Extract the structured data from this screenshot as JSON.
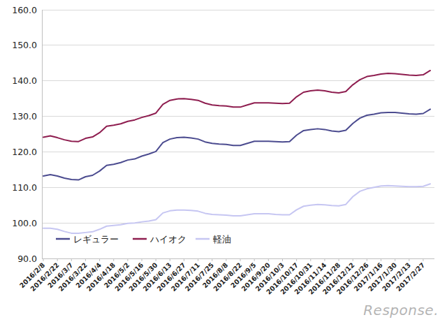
{
  "chart_data": {
    "type": "line",
    "categories": [
      "2016/2/8",
      null,
      "2016/2/22",
      null,
      "2016/3/7",
      null,
      "2016/3/22",
      null,
      "2016/4/4",
      null,
      "2016/4/18",
      null,
      "2016/5/2",
      null,
      "2016/5/16",
      null,
      "2016/5/30",
      null,
      "2016/6/13",
      null,
      "2016/6/27",
      null,
      "2016/7/11",
      null,
      "2016/7/25",
      null,
      "2016/8/8",
      null,
      "2016/8/22",
      null,
      "2016/9/5",
      null,
      "2016/9/20",
      null,
      "2016/10/3",
      null,
      "2016/10/17",
      null,
      "2016/10/31",
      null,
      "2016/11/14",
      null,
      "2016/11/28",
      null,
      "2016/12/12",
      null,
      "2016/12/26",
      null,
      "2017/1/16",
      null,
      "2017/1/30",
      null,
      "2017/2/13",
      null,
      "2017/2/27",
      null
    ],
    "series": [
      {
        "name": "レギュラー",
        "color": "#4b4b8f",
        "values": [
          113.2,
          113.6,
          113.2,
          112.6,
          112.2,
          112.1,
          113.0,
          113.4,
          114.6,
          116.2,
          116.5,
          117.0,
          117.7,
          118.0,
          118.8,
          119.4,
          120.1,
          122.6,
          123.6,
          124.0,
          124.1,
          123.9,
          123.6,
          122.8,
          122.4,
          122.2,
          122.1,
          121.8,
          121.8,
          122.4,
          123.0,
          123.0,
          123.0,
          122.9,
          122.8,
          122.9,
          124.7,
          126.0,
          126.3,
          126.5,
          126.3,
          125.9,
          125.7,
          126.1,
          128.0,
          129.5,
          130.3,
          130.6,
          131.0,
          131.1,
          131.1,
          130.9,
          130.7,
          130.6,
          130.8,
          132.0
        ]
      },
      {
        "name": "ハイオク",
        "color": "#8e1d4f",
        "values": [
          124.1,
          124.5,
          124.0,
          123.4,
          123.0,
          122.9,
          123.8,
          124.2,
          125.4,
          127.2,
          127.5,
          127.9,
          128.6,
          129.0,
          129.7,
          130.2,
          130.9,
          133.4,
          134.5,
          134.9,
          135.0,
          134.8,
          134.5,
          133.7,
          133.2,
          133.0,
          132.9,
          132.6,
          132.6,
          133.2,
          133.8,
          133.8,
          133.8,
          133.7,
          133.6,
          133.7,
          135.5,
          136.8,
          137.2,
          137.4,
          137.2,
          136.8,
          136.6,
          137.0,
          138.9,
          140.3,
          141.2,
          141.5,
          141.9,
          142.1,
          142.0,
          141.8,
          141.6,
          141.5,
          141.7,
          142.9
        ]
      },
      {
        "name": "軽油",
        "color": "#c6c6f2",
        "values": [
          98.5,
          98.5,
          98.2,
          97.6,
          97.1,
          97.1,
          97.3,
          97.5,
          98.2,
          99.1,
          99.3,
          99.5,
          99.9,
          100.0,
          100.3,
          100.5,
          100.9,
          102.8,
          103.4,
          103.6,
          103.6,
          103.5,
          103.3,
          102.7,
          102.4,
          102.3,
          102.2,
          102.0,
          102.0,
          102.3,
          102.6,
          102.6,
          102.6,
          102.4,
          102.3,
          102.3,
          103.7,
          104.7,
          105.0,
          105.2,
          105.1,
          104.9,
          104.8,
          105.2,
          107.4,
          108.9,
          109.6,
          110.0,
          110.4,
          110.5,
          110.4,
          110.3,
          110.2,
          110.2,
          110.3,
          111.0
        ]
      }
    ],
    "ylim": [
      90,
      160
    ],
    "yticks": [
      {
        "value": 90,
        "label": "90.0"
      },
      {
        "value": 100,
        "label": "100.0"
      },
      {
        "value": 110,
        "label": "110.0"
      },
      {
        "value": 120,
        "label": "120.0"
      },
      {
        "value": 130,
        "label": "130.0"
      },
      {
        "value": 140,
        "label": "140.0"
      },
      {
        "value": 150,
        "label": "150.0"
      },
      {
        "value": 160,
        "label": "160.0"
      }
    ],
    "grid": true,
    "legend": "bottom-left",
    "source": "Response."
  }
}
